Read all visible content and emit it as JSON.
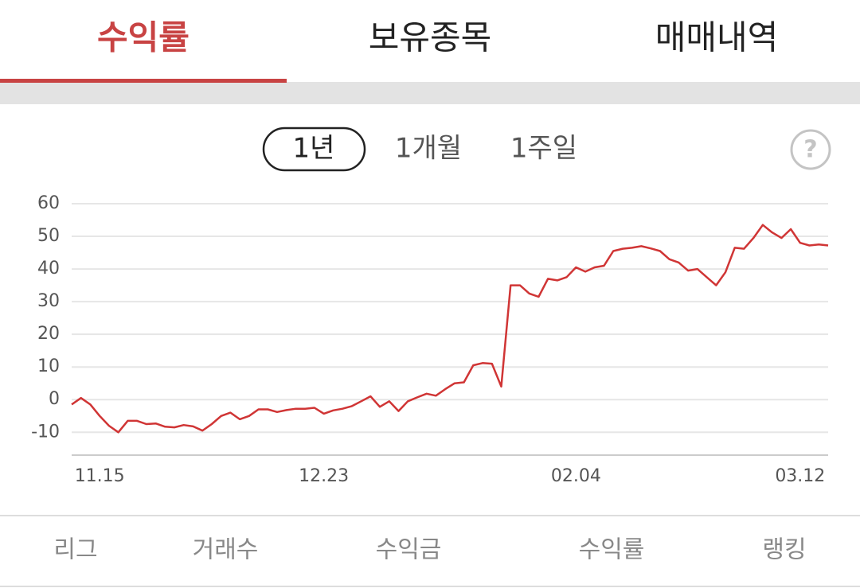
{
  "tabs": [
    "수익률",
    "보유종목",
    "매매내역"
  ],
  "periods": [
    "1년",
    "1개월",
    "1주일"
  ],
  "help": "?",
  "chart_data": {
    "type": "line",
    "color": "#d03535",
    "grid": true,
    "ylim": [
      -17,
      60
    ],
    "yticks": [
      60,
      50,
      40,
      30,
      20,
      10,
      0,
      -10
    ],
    "categories": [
      null,
      null,
      null,
      "11.15",
      null,
      null,
      null,
      null,
      null,
      null,
      null,
      null,
      null,
      null,
      null,
      null,
      null,
      null,
      null,
      null,
      null,
      null,
      null,
      null,
      null,
      null,
      null,
      "12.23",
      null,
      null,
      null,
      null,
      null,
      null,
      null,
      null,
      null,
      null,
      null,
      null,
      null,
      null,
      null,
      null,
      null,
      null,
      null,
      null,
      null,
      null,
      null,
      null,
      null,
      null,
      "02.04",
      null,
      null,
      null,
      null,
      null,
      null,
      null,
      null,
      null,
      null,
      null,
      null,
      null,
      null,
      null,
      null,
      null,
      null,
      null,
      null,
      null,
      null,
      null,
      "03.12",
      null,
      null,
      null
    ],
    "series": [
      {
        "values": [
          -1.5,
          0.5,
          -1.5,
          -5,
          -8,
          -10,
          -6.5,
          -6.5,
          -7.5,
          -7.3,
          -8.3,
          -8.5,
          -7.8,
          -8.2,
          -9.5,
          -7.5,
          -5,
          -4,
          -6,
          -5,
          -3,
          -3,
          -3.8,
          -3.2,
          -2.8,
          -2.8,
          -2.5,
          -4.3,
          -3.3,
          -2.8,
          -2,
          -0.5,
          1,
          -2.2,
          -0.5,
          -3.5,
          -0.5,
          0.7,
          1.8,
          1.2,
          3.2,
          5,
          5.3,
          10.5,
          11.2,
          11,
          4,
          35,
          35,
          32.5,
          31.5,
          37,
          36.5,
          37.5,
          40.5,
          39.2,
          40.5,
          41,
          45.5,
          46.2,
          46.5,
          47,
          46.3,
          45.5,
          43,
          42,
          39.5,
          40,
          37.5,
          35,
          39,
          46.5,
          46.2,
          49.5,
          53.5,
          51.2,
          49.5,
          52.2,
          48,
          47.2,
          47.5,
          47.2
        ]
      }
    ]
  },
  "bottom": [
    "리그",
    "거래수",
    "수익금",
    "수익률",
    "랭킹"
  ]
}
